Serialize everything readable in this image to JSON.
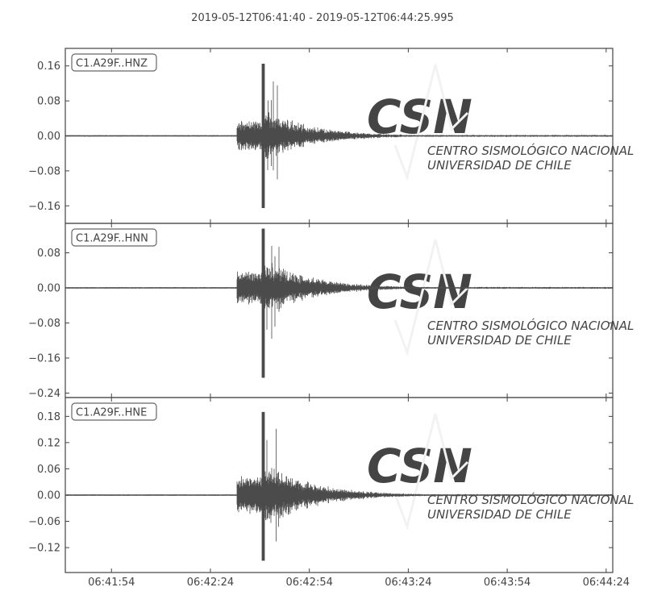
{
  "chart_data": {
    "type": "line",
    "title": "2019-05-12T06:41:40  -  2019-05-12T06:44:25.995",
    "start": "06:41:40",
    "end": "06:44:25.995",
    "x_ticks": [
      "06:41:54",
      "06:42:24",
      "06:42:54",
      "06:43:24",
      "06:43:54",
      "06:44:24"
    ],
    "x_tick_seconds": [
      14,
      44,
      74,
      104,
      134,
      164
    ],
    "x_range_seconds": [
      0,
      166
    ],
    "line_color": "#4b4b4b",
    "watermark": "CSN CENTRO SISMOLÓGICO NACIONAL UNIVERSIDAD DE CHILE",
    "series": [
      {
        "name": "C1.A29F..HNZ",
        "ylim": [
          -0.2,
          0.2
        ],
        "y_ticks": [
          0.16,
          0.08,
          0.0,
          -0.08,
          -0.16
        ],
        "y_tick_labels": [
          "0.16",
          "0.08",
          "0.00",
          "−0.08",
          "−0.16"
        ],
        "onset_s": 52,
        "peak_s": 60,
        "max": 0.165,
        "min": -0.165,
        "coda_amp": 0.055
      },
      {
        "name": "C1.A29F..HNN",
        "ylim": [
          -0.25,
          0.147
        ],
        "y_ticks": [
          0.08,
          0.0,
          -0.08,
          -0.16,
          -0.24
        ],
        "y_tick_labels": [
          "0.08",
          "0.00",
          "−0.08",
          "−0.16",
          "−0.24"
        ],
        "onset_s": 52,
        "peak_s": 60,
        "max": 0.135,
        "min": -0.205,
        "coda_amp": 0.06
      },
      {
        "name": "C1.A29F..HNE",
        "ylim": [
          -0.177,
          0.223
        ],
        "y_ticks": [
          0.18,
          0.12,
          0.06,
          0.0,
          -0.06,
          -0.12
        ],
        "y_tick_labels": [
          "0.18",
          "0.12",
          "0.06",
          "0.00",
          "−0.06",
          "−0.12"
        ],
        "onset_s": 52,
        "peak_s": 60,
        "max": 0.19,
        "min": -0.15,
        "coda_amp": 0.07
      }
    ]
  }
}
